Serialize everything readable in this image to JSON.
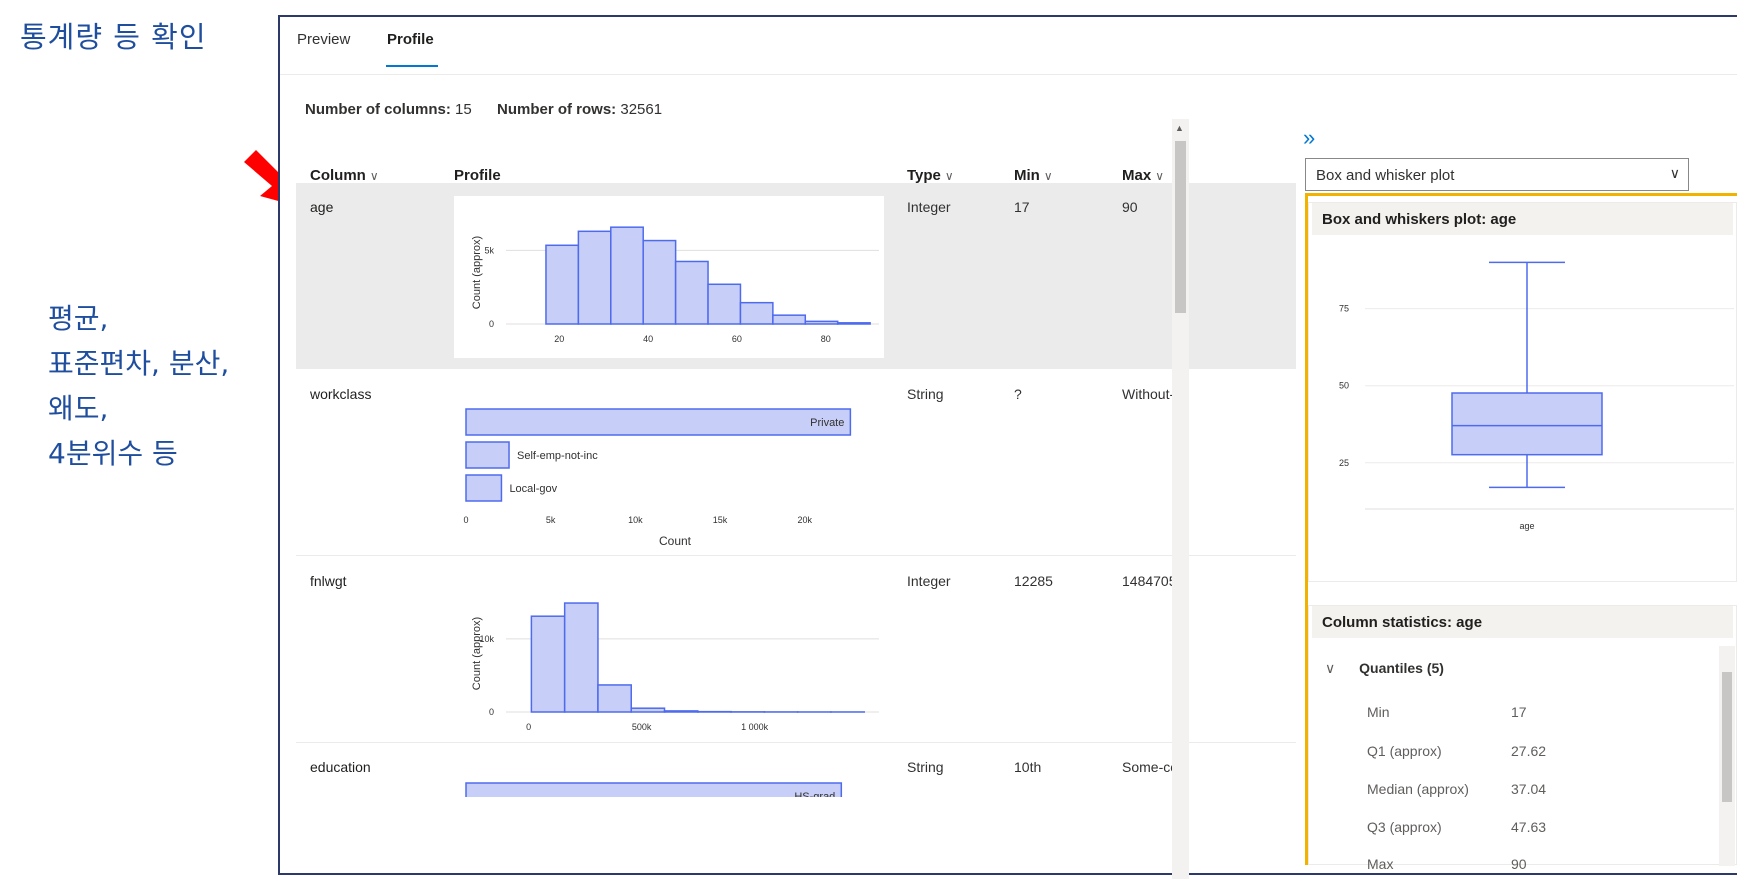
{
  "annotations": {
    "title": "통계량 등 확인",
    "notes": [
      "평균,",
      "표준편차, 분산,",
      "왜도,",
      "4분위수 등"
    ]
  },
  "tabs": [
    {
      "label": "Preview",
      "active": false
    },
    {
      "label": "Profile",
      "active": true
    }
  ],
  "summary": {
    "columns_label": "Number of columns:",
    "columns_value": "15",
    "rows_label": "Number of rows:",
    "rows_value": "32561"
  },
  "table": {
    "headers": {
      "column": "Column",
      "profile": "Profile",
      "type": "Type",
      "min": "Min",
      "max": "Max"
    },
    "rows": [
      {
        "name": "age",
        "type": "Integer",
        "min": "17",
        "max": "90",
        "selected": true
      },
      {
        "name": "workclass",
        "type": "String",
        "min": "?",
        "max": "Without-",
        "selected": false
      },
      {
        "name": "fnlwgt",
        "type": "Integer",
        "min": "12285",
        "max": "1484705",
        "selected": false
      },
      {
        "name": "education",
        "type": "String",
        "min": "10th",
        "max": "Some-co",
        "selected": false
      }
    ]
  },
  "chart_data": [
    {
      "type": "bar",
      "column": "age",
      "ylabel": "Count (approx)",
      "x_ticks": [
        "20",
        "40",
        "60",
        "80"
      ],
      "y_ticks": [
        "0",
        "5k"
      ],
      "bin_edges": [
        17,
        24.3,
        31.6,
        38.9,
        46.2,
        53.5,
        60.8,
        68.1,
        75.4,
        82.7,
        90
      ],
      "values": [
        5350,
        6300,
        6580,
        5670,
        4250,
        2700,
        1450,
        600,
        180,
        80
      ],
      "ylim": [
        0,
        7000
      ],
      "xlim": [
        8,
        92
      ]
    },
    {
      "type": "bar",
      "column": "workclass",
      "orientation": "horizontal",
      "categories": [
        "Private",
        "Self-emp-not-inc",
        "Local-gov"
      ],
      "values": [
        22696,
        2541,
        2093
      ],
      "xlabel": "Count",
      "x_ticks": [
        "0",
        "5k",
        "10k",
        "15k",
        "20k"
      ],
      "xlim": [
        0,
        23500
      ]
    },
    {
      "type": "bar",
      "column": "fnlwgt",
      "ylabel": "Count (approx)",
      "x_ticks": [
        "0",
        "500k",
        "1 000k"
      ],
      "y_ticks": [
        "0",
        "10k"
      ],
      "bin_edges": [
        12285,
        159527,
        306769,
        454011,
        601253,
        748495,
        895737,
        1042979,
        1190221,
        1337463,
        1484705
      ],
      "values": [
        13100,
        14900,
        3700,
        520,
        150,
        50,
        20,
        10,
        5,
        5
      ],
      "ylim": [
        0,
        16000
      ],
      "xlim": [
        -100000,
        1550000
      ]
    },
    {
      "type": "bar",
      "column": "education",
      "orientation": "horizontal",
      "categories": [
        "HS-grad"
      ],
      "values": [
        10501
      ],
      "xlim": [
        0,
        10800
      ]
    },
    {
      "type": "box",
      "title": "Box and whiskers plot: age",
      "category": "age",
      "y_ticks": [
        "25",
        "50",
        "75"
      ],
      "ylim": [
        10,
        95
      ],
      "min": 17,
      "q1": 27.62,
      "median": 37.04,
      "q3": 47.63,
      "max": 90
    }
  ],
  "right_panel": {
    "collapse_icon": "double-chevron-right-icon",
    "plot_select": "Box and whisker plot",
    "stats_title": "Column statistics: age",
    "quantiles_label": "Quantiles (5)",
    "stats": [
      {
        "label": "Min",
        "value": "17"
      },
      {
        "label": "Q1 (approx)",
        "value": "27.62"
      },
      {
        "label": "Median (approx)",
        "value": "37.04"
      },
      {
        "label": "Q3 (approx)",
        "value": "47.63"
      },
      {
        "label": "Max",
        "value": "90"
      }
    ]
  },
  "colors": {
    "bar_fill": "#c7cef7",
    "bar_stroke": "#4f6bed",
    "accent": "#0078d4",
    "highlight": "#f2b300",
    "annotation": "#1f4e9f",
    "arrow": "#ff0000"
  }
}
